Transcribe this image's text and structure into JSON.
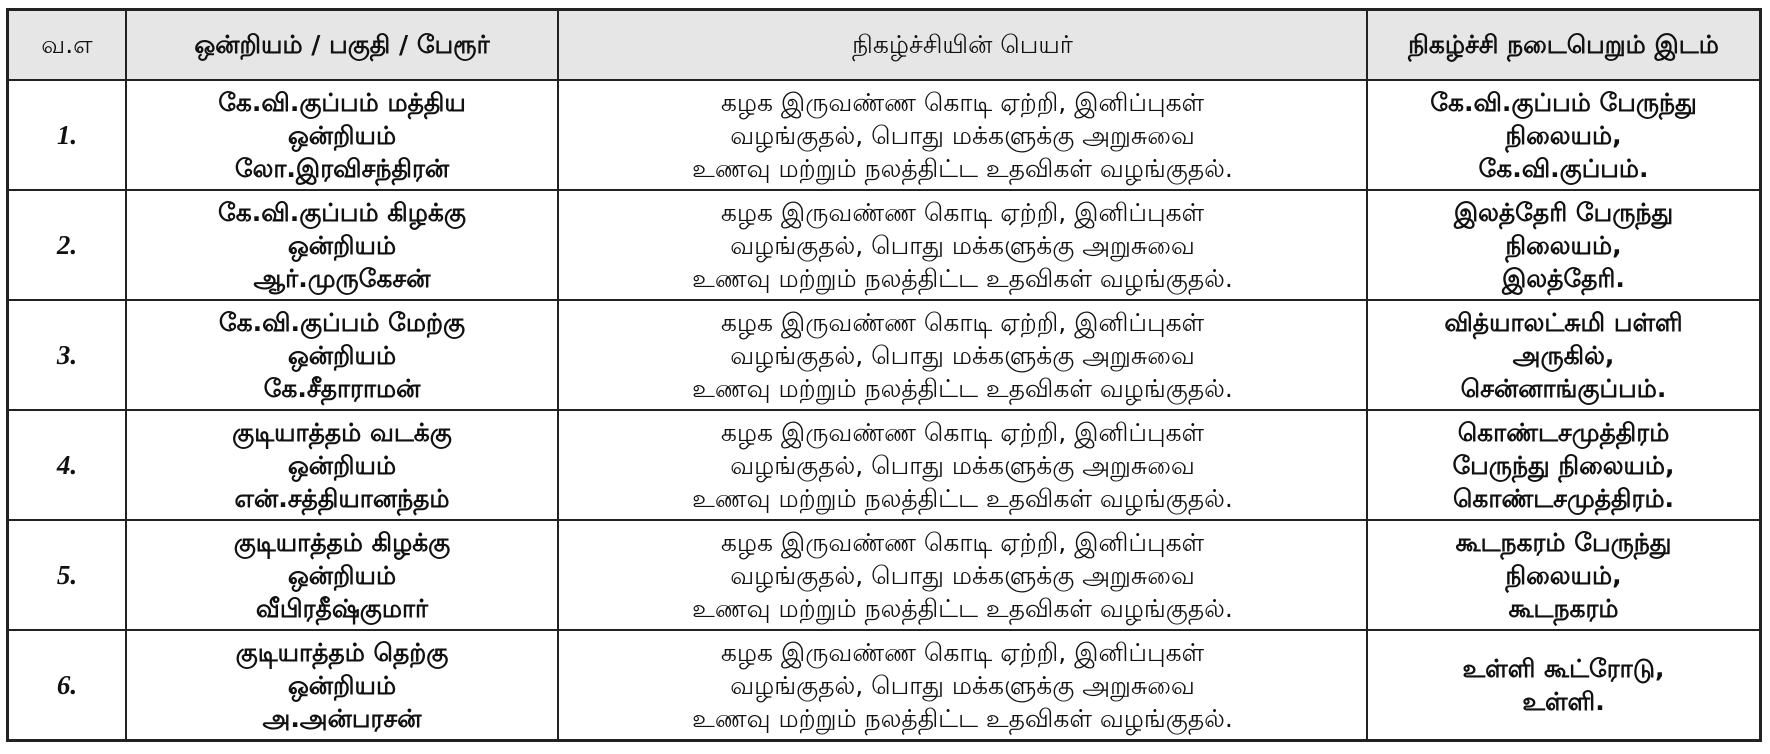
{
  "headers": [
    "வ.எ",
    "ஒன்றியம் / பகுதி / பேரூர்",
    "நிகழ்ச்சியின் பெயர்",
    "நிகழ்ச்சி நடைபெறும் இடம்"
  ],
  "rows": [
    {
      "sno": "1.",
      "area": [
        "கே.வி.குப்பம் மத்திய",
        "ஒன்றியம்",
        "லோ.இரவிசந்திரன்"
      ],
      "event": [
        "கழக இருவண்ண கொடி ஏற்றி, இனிப்புகள்",
        "வழங்குதல், பொது மக்களுக்கு அறுசுவை",
        "உணவு மற்றும் நலத்திட்ட உதவிகள் வழங்குதல்."
      ],
      "venue": [
        "கே.வி.குப்பம் பேருந்து",
        "நிலையம்,",
        "கே.வி.குப்பம்."
      ]
    },
    {
      "sno": "2.",
      "area": [
        "கே.வி.குப்பம் கிழக்கு",
        "ஒன்றியம்",
        "ஆர்.முருகேசன்"
      ],
      "event": [
        "கழக இருவண்ண கொடி ஏற்றி, இனிப்புகள்",
        "வழங்குதல், பொது மக்களுக்கு அறுசுவை",
        "உணவு மற்றும் நலத்திட்ட உதவிகள் வழங்குதல்."
      ],
      "venue": [
        "இலத்தேரி பேருந்து",
        "நிலையம்,",
        "இலத்தேரி."
      ]
    },
    {
      "sno": "3.",
      "area": [
        "கே.வி.குப்பம் மேற்கு",
        "ஒன்றியம்",
        "கே.சீதாராமன்"
      ],
      "event": [
        "கழக இருவண்ண கொடி ஏற்றி, இனிப்புகள்",
        "வழங்குதல், பொது மக்களுக்கு அறுசுவை",
        "உணவு மற்றும் நலத்திட்ட உதவிகள் வழங்குதல்."
      ],
      "venue": [
        "வித்யாலட்சுமி பள்ளி",
        "அருகில்,",
        "சென்னாங்குப்பம்."
      ]
    },
    {
      "sno": "4.",
      "area": [
        "குடியாத்தம் வடக்கு",
        "ஒன்றியம்",
        "என்.சத்தியானந்தம்"
      ],
      "event": [
        "கழக இருவண்ண கொடி ஏற்றி, இனிப்புகள்",
        "வழங்குதல், பொது மக்களுக்கு அறுசுவை",
        "உணவு மற்றும் நலத்திட்ட உதவிகள் வழங்குதல்."
      ],
      "venue": [
        "கொண்டசமுத்திரம்",
        "பேருந்து நிலையம்,",
        "கொண்டசமுத்திரம்."
      ]
    },
    {
      "sno": "5.",
      "area": [
        "குடியாத்தம் கிழக்கு",
        "ஒன்றியம்",
        "வீபிரதீஷ்குமார்"
      ],
      "event": [
        "கழக இருவண்ண கொடி ஏற்றி, இனிப்புகள்",
        "வழங்குதல், பொது மக்களுக்கு அறுசுவை",
        "உணவு மற்றும் நலத்திட்ட உதவிகள் வழங்குதல்."
      ],
      "venue": [
        "கூடநகரம் பேருந்து",
        "நிலையம்,",
        "கூடநகரம்"
      ]
    },
    {
      "sno": "6.",
      "area": [
        "குடியாத்தம் தெற்கு",
        "ஒன்றியம்",
        "அ.அன்பரசன்"
      ],
      "event": [
        "கழக இருவண்ண கொடி ஏற்றி, இனிப்புகள்",
        "வழங்குதல், பொது மக்களுக்கு அறுசுவை",
        "உணவு மற்றும் நலத்திட்ட உதவிகள் வழங்குதல்."
      ],
      "venue": [
        "உள்ளி கூட்ரோடு,",
        "உள்ளி."
      ]
    }
  ]
}
